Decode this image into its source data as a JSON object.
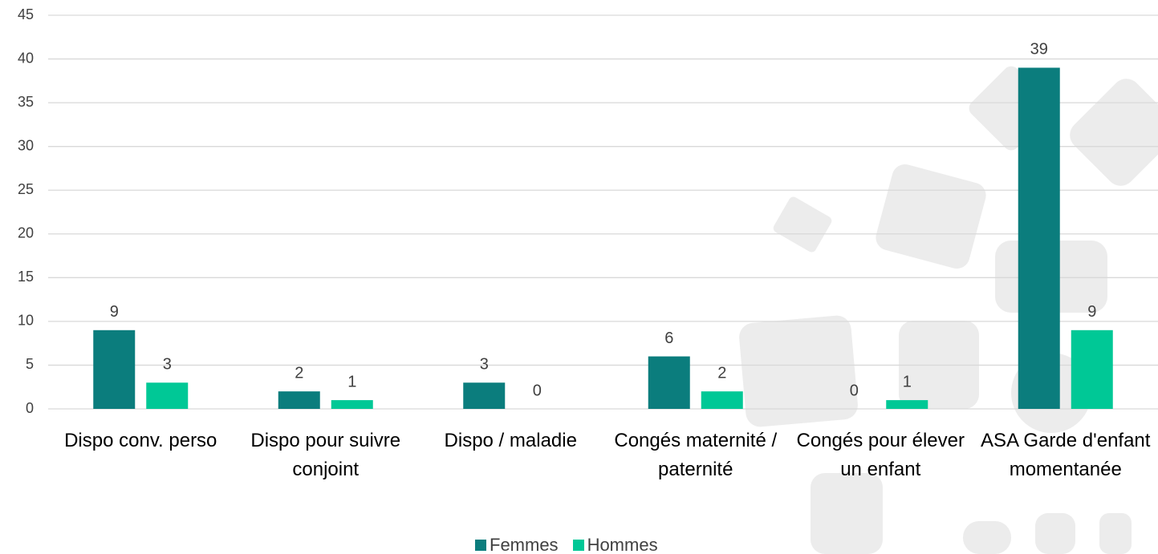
{
  "chart_data": {
    "type": "bar",
    "categories": [
      "Dispo conv. perso",
      "Dispo pour suivre conjoint",
      "Dispo / maladie",
      "Congés maternité / paternité",
      "Congés pour élever un enfant",
      "ASA Garde d'enfant momentanée"
    ],
    "series": [
      {
        "name": "Femmes",
        "color": "#0b7d7d",
        "values": [
          9,
          2,
          3,
          6,
          0,
          39
        ]
      },
      {
        "name": "Hommes",
        "color": "#00c896",
        "values": [
          3,
          1,
          0,
          2,
          1,
          9
        ]
      }
    ],
    "ylim": [
      0,
      45
    ],
    "yticks": [
      0,
      5,
      10,
      15,
      20,
      25,
      30,
      35,
      40,
      45
    ],
    "grid": true,
    "legend": "bottom"
  }
}
